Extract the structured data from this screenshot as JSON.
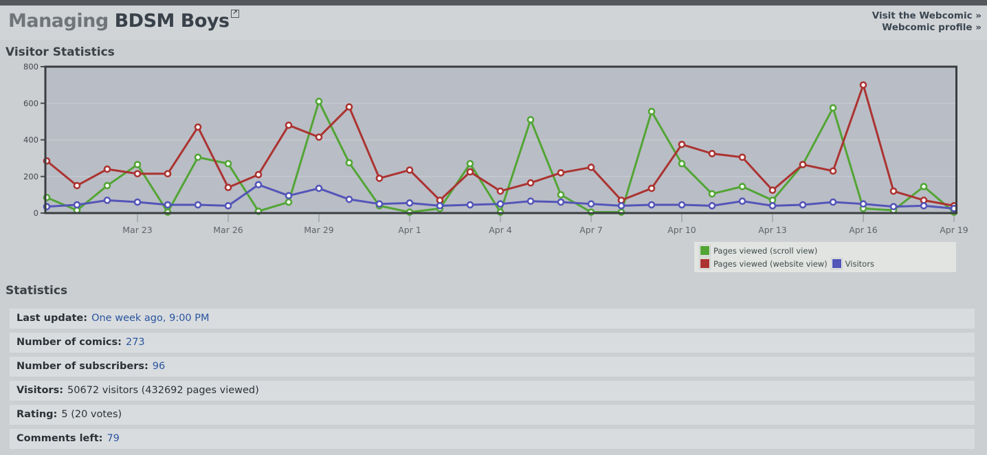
{
  "header": {
    "title_prefix": "Managing",
    "title_name": "BDSM Boys",
    "links": [
      {
        "label": "Visit the Webcomic »"
      },
      {
        "label": "Webcomic profile »"
      }
    ]
  },
  "chart_section": {
    "heading": "Visitor Statistics"
  },
  "chart_data": {
    "type": "line",
    "title": "Visitor Statistics",
    "n_points": 31,
    "ylim": [
      0,
      800
    ],
    "y_ticks": [
      0,
      200,
      400,
      600,
      800
    ],
    "grid": "horizontal",
    "legend_position": "bottom-right",
    "x_tick_indices": [
      3,
      6,
      9,
      12,
      15,
      18,
      21,
      24,
      27,
      30
    ],
    "x_tick_labels": [
      "Mar 23",
      "Mar 26",
      "Mar 29",
      "Apr 1",
      "Apr 4",
      "Apr 7",
      "Apr 10",
      "Apr 13",
      "Apr 16",
      "Apr 19"
    ],
    "series": [
      {
        "name": "Pages viewed (scroll view)",
        "color": "#52a535",
        "values": [
          85,
          15,
          150,
          265,
          5,
          305,
          270,
          10,
          60,
          610,
          275,
          40,
          5,
          25,
          270,
          5,
          510,
          100,
          5,
          5,
          555,
          270,
          105,
          145,
          70,
          265,
          575,
          25,
          15,
          145,
          5
        ]
      },
      {
        "name": "Pages viewed (website view)",
        "color": "#ab3331",
        "values": [
          285,
          150,
          240,
          215,
          215,
          470,
          140,
          210,
          480,
          415,
          580,
          190,
          235,
          70,
          225,
          120,
          165,
          220,
          250,
          70,
          135,
          375,
          325,
          305,
          125,
          265,
          230,
          700,
          120,
          70,
          40
        ]
      },
      {
        "name": "Visitors",
        "color": "#5355b8",
        "values": [
          35,
          45,
          70,
          60,
          45,
          45,
          40,
          155,
          95,
          135,
          75,
          50,
          55,
          40,
          45,
          50,
          65,
          60,
          50,
          40,
          45,
          45,
          40,
          65,
          40,
          45,
          60,
          50,
          35,
          40,
          25
        ]
      }
    ]
  },
  "stats_section": {
    "heading": "Statistics",
    "rows": [
      {
        "label": "Last update:",
        "value": "One week ago, 9:00 PM",
        "value_is_link": true
      },
      {
        "label": "Number of comics:",
        "value": "273",
        "value_is_link": true
      },
      {
        "label": "Number of subscribers:",
        "value": "96",
        "value_is_link": true
      },
      {
        "label": "Visitors:",
        "value": "50672 visitors (432692 pages viewed)",
        "value_is_link": false
      },
      {
        "label": "Rating:",
        "value": "5 (20 votes)",
        "value_is_link": false
      },
      {
        "label": "Comments left:",
        "value": "79",
        "value_is_link": true
      }
    ]
  },
  "colors": {
    "page_bg": "#cbcfd2",
    "topbar": "#54575b",
    "header_band": "#d1d4d7",
    "plot_bg": "#b9bdc5",
    "plot_border": "#3b3e41",
    "gridline": "#c9ccd1",
    "axis_label": "#5e6367",
    "link": "#2a549e",
    "row_bg": "#d8dcdf",
    "legend_bg": "#e1e4e1"
  }
}
